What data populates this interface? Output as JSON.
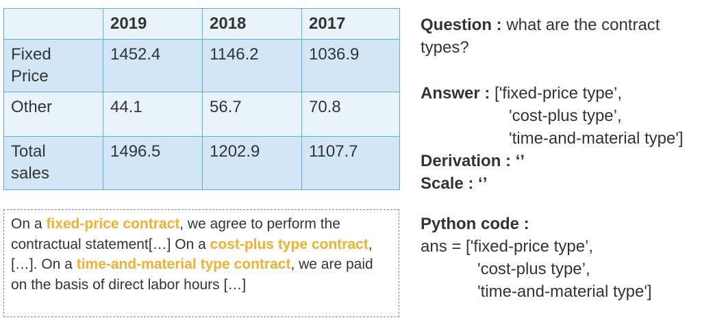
{
  "table": {
    "headers": [
      "",
      "2019",
      "2018",
      "2017"
    ],
    "rows": [
      {
        "label_line1": "Fixed",
        "label_line2": "Price",
        "values": [
          "1452.4",
          "1146.2",
          "1036.9"
        ]
      },
      {
        "label_line1": "Other",
        "label_line2": "",
        "values": [
          "44.1",
          "56.7",
          "70.8"
        ]
      },
      {
        "label_line1": "Total",
        "label_line2": "sales",
        "values": [
          "1496.5",
          "1202.9",
          "1107.7"
        ]
      }
    ]
  },
  "context": {
    "t1": "On a ",
    "h1": "fixed-price contract",
    "t2": ", we agree to perform the contractual statement[…] On a ",
    "h2": "cost-plus type contract",
    "t3": ", […]. On a ",
    "h3": "time-and-material type contract",
    "t4": ", we are paid on the basis of direct labor hours […]",
    "highlight_color": "#f0b030"
  },
  "qa": {
    "question_label": "Question :",
    "question_line1": " what are the contract",
    "question_line2": "types?",
    "answer_label": "Answer :",
    "answer_line1": " ['fixed-price type’,",
    "answer_line2": "'cost-plus type’,",
    "answer_line3": "'time-and-material type']",
    "derivation_label": "Derivation :",
    "derivation_value": " ‘’",
    "scale_label": "Scale :",
    "scale_value": " ‘’",
    "code_label": "Python code :",
    "code_line1": "ans = ['fixed-price type’,",
    "code_line2": "'cost-plus type’,",
    "code_line3": "'time-and-material type']"
  }
}
